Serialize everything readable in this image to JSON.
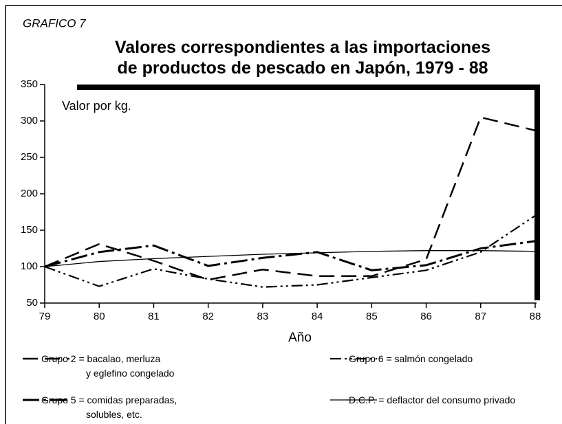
{
  "chart_data": {
    "type": "line",
    "label": "GRAFICO 7",
    "title": "Valores correspondientes a las importaciones\nde productos de pescado en Japón, 1979 - 88",
    "annotation": "Valor por kg.",
    "x_label": "Año",
    "x": [
      79,
      80,
      81,
      82,
      83,
      84,
      85,
      86,
      87,
      88
    ],
    "xlim": [
      79,
      88
    ],
    "xticks": [
      79,
      80,
      81,
      82,
      83,
      84,
      85,
      86,
      87,
      88
    ],
    "ylim": [
      50,
      350
    ],
    "yticks": [
      50,
      100,
      150,
      200,
      250,
      300,
      350
    ],
    "series": [
      {
        "name": "Grupo 2 = bacalao, merluza\ny eglefino congelado",
        "color": "#000000",
        "values": [
          100,
          131,
          108,
          82,
          96,
          87,
          87,
          110,
          305,
          287
        ]
      },
      {
        "name": "Grupo 6 = salmón congelado",
        "color": "#000000",
        "values": [
          100,
          73,
          97,
          83,
          72,
          75,
          85,
          95,
          120,
          170
        ]
      },
      {
        "name": "Grupo 5 = comidas preparadas,\nsolubles, etc.",
        "color": "#000000",
        "values": [
          100,
          120,
          129,
          101,
          112,
          120,
          95,
          102,
          125,
          135
        ]
      },
      {
        "name": "D.C.P. = deflactor del consumo privado",
        "color": "#000000",
        "values": [
          100,
          107,
          111,
          114,
          117,
          119,
          121,
          122,
          122,
          121
        ]
      }
    ]
  }
}
